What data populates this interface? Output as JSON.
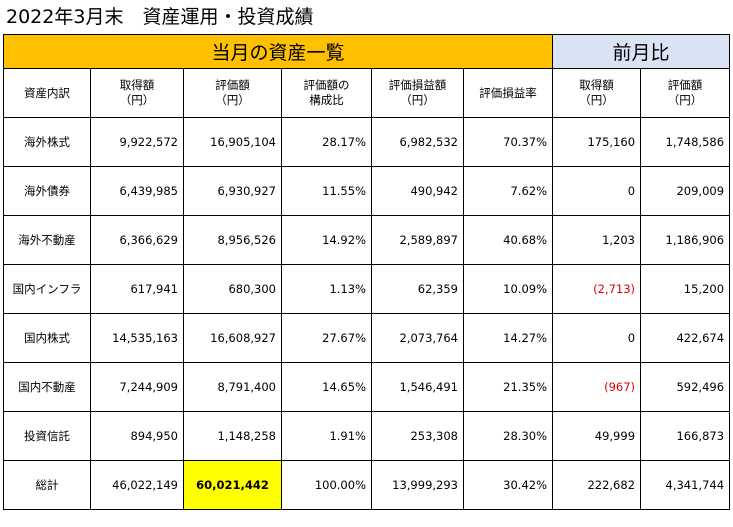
{
  "title": "2022年3月末　資産運用・投資成績",
  "band": {
    "current": "当月の資産一覧",
    "previous": "前月比"
  },
  "headers": {
    "category": "資産内訳",
    "acquisition": [
      "取得額",
      "（円）"
    ],
    "valuation": [
      "評価額",
      "（円）"
    ],
    "ratio": [
      "評価額の",
      "構成比"
    ],
    "gain": [
      "評価損益額",
      "（円）"
    ],
    "gain_rate": "評価損益率",
    "prev_acquisition": [
      "取得額",
      "（円）"
    ],
    "prev_valuation": [
      "評価額",
      "（円）"
    ]
  },
  "rows": [
    {
      "category": "海外株式",
      "acquisition": "9,922,572",
      "valuation": "16,905,104",
      "ratio": "28.17%",
      "gain": "6,982,532",
      "gain_rate": "70.37%",
      "prev_acquisition": "175,160",
      "prev_valuation": "1,748,586"
    },
    {
      "category": "海外債券",
      "acquisition": "6,439,985",
      "valuation": "6,930,927",
      "ratio": "11.55%",
      "gain": "490,942",
      "gain_rate": "7.62%",
      "prev_acquisition": "0",
      "prev_valuation": "209,009"
    },
    {
      "category": "海外不動産",
      "acquisition": "6,366,629",
      "valuation": "8,956,526",
      "ratio": "14.92%",
      "gain": "2,589,897",
      "gain_rate": "40.68%",
      "prev_acquisition": "1,203",
      "prev_valuation": "1,186,906"
    },
    {
      "category": "国内インフラ",
      "acquisition": "617,941",
      "valuation": "680,300",
      "ratio": "1.13%",
      "gain": "62,359",
      "gain_rate": "10.09%",
      "prev_acquisition": "(2,713)",
      "prev_valuation": "15,200"
    },
    {
      "category": "国内株式",
      "acquisition": "14,535,163",
      "valuation": "16,608,927",
      "ratio": "27.67%",
      "gain": "2,073,764",
      "gain_rate": "14.27%",
      "prev_acquisition": "0",
      "prev_valuation": "422,674"
    },
    {
      "category": "国内不動産",
      "acquisition": "7,244,909",
      "valuation": "8,791,400",
      "ratio": "14.65%",
      "gain": "1,546,491",
      "gain_rate": "21.35%",
      "prev_acquisition": "(967)",
      "prev_valuation": "592,496"
    },
    {
      "category": "投資信託",
      "acquisition": "894,950",
      "valuation": "1,148,258",
      "ratio": "1.91%",
      "gain": "253,308",
      "gain_rate": "28.30%",
      "prev_acquisition": "49,999",
      "prev_valuation": "166,873"
    }
  ],
  "total": {
    "category": "総計",
    "acquisition": "46,022,149",
    "valuation": "60,021,442",
    "ratio": "100.00%",
    "gain": "13,999,293",
    "gain_rate": "30.42%",
    "prev_acquisition": "222,682",
    "prev_valuation": "4,341,744"
  },
  "colors": {
    "current_band": "#ffc000",
    "previous_band": "#dae3f3",
    "total_highlight": "#ffff00",
    "negative_text": "#e00000"
  }
}
